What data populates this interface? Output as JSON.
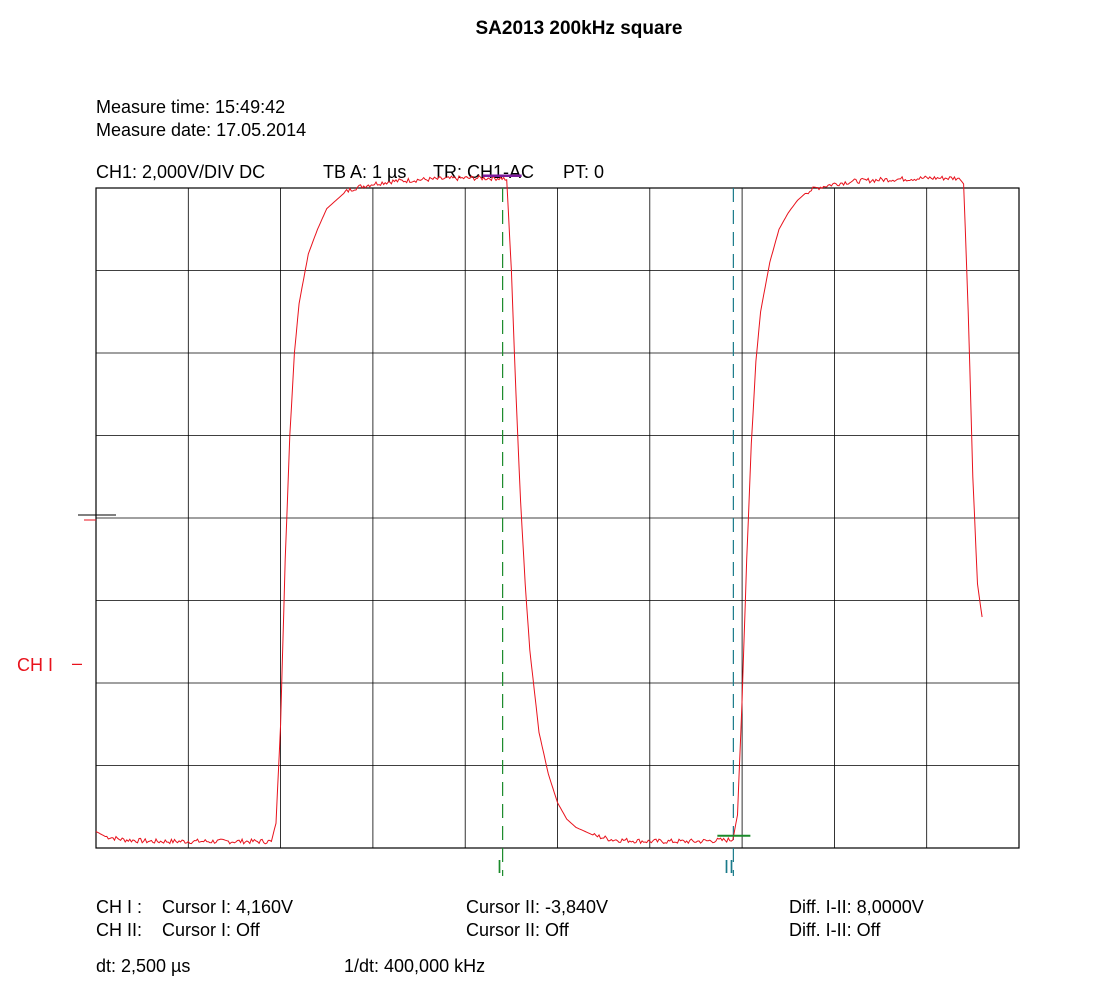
{
  "title": "SA2013 200kHz square",
  "measure_time": "Measure time: 15:49:42",
  "measure_date": "Measure date: 17.05.2014",
  "settings": {
    "ch1": "CH1: 2,000V/DIV DC",
    "tb": "TB A: 1 µs",
    "tr": "TR: CH1-AC",
    "pt": "PT: 0"
  },
  "channel_label": "CH I",
  "channel_marker": "–",
  "cursor_labels": {
    "c1": "I",
    "c2": "II"
  },
  "readouts": {
    "ch1_row": {
      "label": "CH I :",
      "cursor1": "Cursor I: 4,160V",
      "cursor2": "Cursor II: -3,840V",
      "diff": "Diff. I-II: 8,0000V"
    },
    "ch2_row": {
      "label": "CH II:",
      "cursor1": "Cursor I: Off",
      "cursor2": "Cursor II: Off",
      "diff": "Diff. I-II: Off"
    },
    "dt": "dt: 2,500 µs",
    "inv_dt": "1/dt: 400,000 kHz"
  },
  "colors": {
    "trace": "#e8121c",
    "cursor1": "#1a8a2a",
    "cursor2": "#1a7a8a",
    "cursor_marker": "#7a1a9a",
    "grid": "#000000"
  },
  "chart_data": {
    "type": "line",
    "title": "SA2013 200kHz square",
    "xlabel": "",
    "ylabel": "",
    "xlim": [
      0,
      10
    ],
    "ylim": [
      -4,
      4
    ],
    "x_unit": "µs",
    "y_unit": "V",
    "grid": true,
    "series": [
      {
        "values_x": [
          0,
          0.1,
          0.3,
          0.6,
          1.0,
          1.5,
          1.9,
          1.95,
          2.0,
          2.05,
          2.1,
          2.15,
          2.2,
          2.3,
          2.4,
          2.5,
          2.6,
          2.7,
          2.8,
          3.0,
          3.2,
          3.5,
          4.0,
          4.4,
          4.45,
          4.5,
          4.55,
          4.6,
          4.65,
          4.7,
          4.8,
          4.9,
          5.0,
          5.1,
          5.2,
          5.4,
          5.6,
          6.0,
          6.5,
          6.9,
          6.95,
          7.0,
          7.05,
          7.1,
          7.15,
          7.2,
          7.3,
          7.4,
          7.5,
          7.6,
          7.7,
          7.8,
          8.0,
          8.2,
          8.5,
          9.0,
          9.35,
          9.4,
          9.45,
          9.5,
          9.55,
          9.6
        ],
        "values": [
          -3.8,
          -3.86,
          -3.9,
          -3.92,
          -3.92,
          -3.92,
          -3.92,
          -3.7,
          -2.5,
          -0.5,
          1.0,
          2.0,
          2.6,
          3.2,
          3.5,
          3.75,
          3.85,
          3.95,
          4.0,
          4.05,
          4.08,
          4.1,
          4.12,
          4.12,
          4.1,
          3.0,
          1.5,
          0.2,
          -0.8,
          -1.6,
          -2.6,
          -3.1,
          -3.45,
          -3.65,
          -3.75,
          -3.85,
          -3.9,
          -3.92,
          -3.92,
          -3.9,
          -3.6,
          -2.2,
          -0.5,
          0.9,
          1.9,
          2.5,
          3.1,
          3.5,
          3.7,
          3.85,
          3.95,
          4.0,
          4.05,
          4.08,
          4.1,
          4.12,
          4.12,
          4.05,
          2.5,
          0.5,
          -0.8,
          -1.2
        ]
      }
    ],
    "cursors": {
      "cursor1_x": 4.4,
      "cursor2_x": 6.9,
      "cursor1_y": 4.16,
      "cursor2_y": -3.84
    }
  }
}
